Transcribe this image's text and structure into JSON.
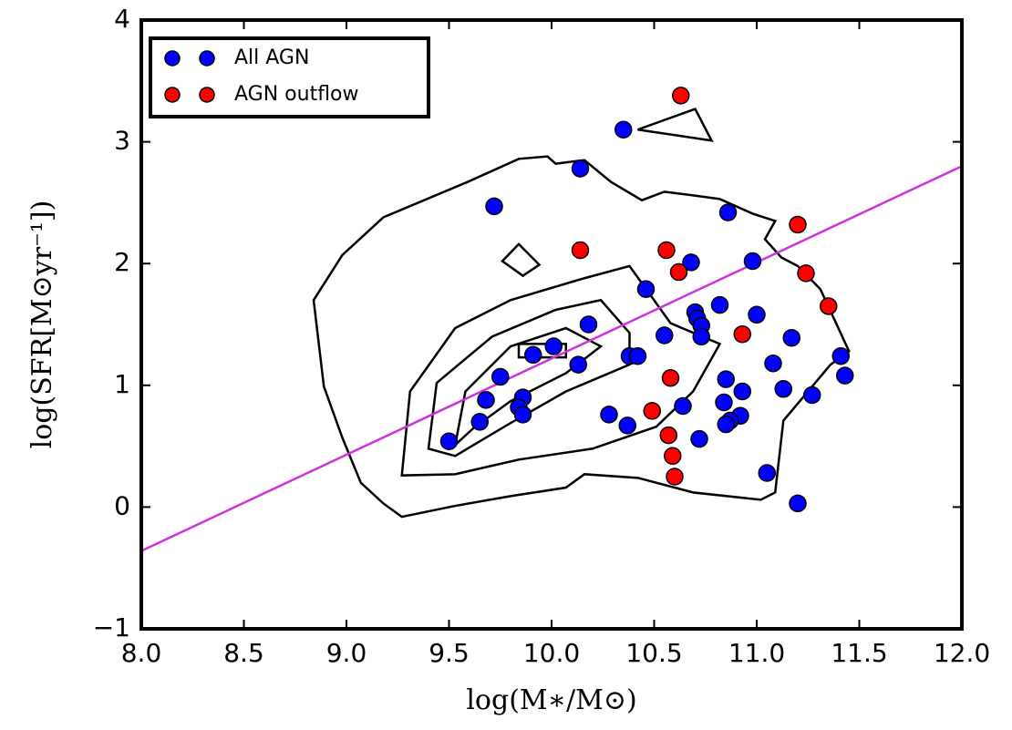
{
  "chart_data": {
    "type": "scatter",
    "xlabel": "log(M∗/M⊙)",
    "ylabel": "log(SFR[M⊙yr⁻¹])",
    "xlim": [
      8,
      12
    ],
    "ylim": [
      -1,
      4
    ],
    "xticks": [
      {
        "value": 8,
        "label": "8.0"
      },
      {
        "value": 8.5,
        "label": "8.5"
      },
      {
        "value": 9,
        "label": "9.0"
      },
      {
        "value": 9.5,
        "label": "9.5"
      },
      {
        "value": 10,
        "label": "10.0"
      },
      {
        "value": 10.5,
        "label": "10.5"
      },
      {
        "value": 11,
        "label": "11.0"
      },
      {
        "value": 11.5,
        "label": "11.5"
      },
      {
        "value": 12,
        "label": "12.0"
      }
    ],
    "yticks": [
      {
        "value": -1,
        "label": "−1"
      },
      0,
      1,
      2,
      3,
      4
    ],
    "legend": "upper left",
    "series": [
      {
        "name": "All AGN",
        "color": "#0000ff",
        "x": [
          10.35,
          10.14,
          9.72,
          10.86,
          10.68,
          10.98,
          10.46,
          10.82,
          10.7,
          11.0,
          10.18,
          10.71,
          10.73,
          10.73,
          10.55,
          11.17,
          9.91,
          10.01,
          10.13,
          10.38,
          10.42,
          11.41,
          11.08,
          9.75,
          9.68,
          9.86,
          9.84,
          9.86,
          10.85,
          11.43,
          10.93,
          11.13,
          10.84,
          10.64,
          11.27,
          10.28,
          10.37,
          10.92,
          10.87,
          10.85,
          10.72,
          9.65,
          9.5,
          11.05,
          11.2
        ],
        "values": [
          3.1,
          2.78,
          2.47,
          2.42,
          2.01,
          2.02,
          1.79,
          1.66,
          1.6,
          1.58,
          1.5,
          1.55,
          1.49,
          1.4,
          1.41,
          1.39,
          1.25,
          1.32,
          1.17,
          1.24,
          1.24,
          1.24,
          1.18,
          1.07,
          0.88,
          0.9,
          0.82,
          0.76,
          1.05,
          1.08,
          0.95,
          0.97,
          0.86,
          0.83,
          0.92,
          0.76,
          0.67,
          0.75,
          0.71,
          0.68,
          0.56,
          0.7,
          0.54,
          0.28,
          0.03
        ]
      },
      {
        "name": "AGN outflow",
        "color": "#ff0000",
        "x": [
          10.63,
          10.14,
          10.56,
          10.62,
          11.2,
          11.24,
          11.35,
          10.93,
          10.58,
          10.49,
          10.57,
          10.59,
          10.6
        ],
        "values": [
          3.38,
          2.11,
          2.11,
          1.93,
          2.32,
          1.92,
          1.65,
          1.42,
          1.06,
          0.79,
          0.59,
          0.42,
          0.25
        ]
      }
    ],
    "fit_line": {
      "color": "#cc33dd",
      "x": [
        8,
        12
      ],
      "values": [
        -0.36,
        2.8
      ]
    },
    "contour_color": "#000000",
    "contours": [
      {
        "x": [
          8.84,
          8.98,
          9.18,
          9.59,
          9.84,
          9.98,
          10.02,
          10.16,
          10.29,
          10.44,
          10.55,
          10.69,
          10.82,
          10.98,
          11.09,
          11.04,
          11.12,
          11.2,
          11.31,
          11.45,
          11.36,
          11.13,
          11.09,
          11.02,
          10.69,
          10.42,
          10.16,
          10.07,
          9.8,
          9.53,
          9.27,
          9.18,
          9.07,
          8.98,
          8.89
        ],
        "values": [
          1.7,
          2.07,
          2.38,
          2.67,
          2.86,
          2.88,
          2.82,
          2.85,
          2.67,
          2.52,
          2.59,
          2.56,
          2.53,
          2.41,
          2.35,
          2.2,
          2.05,
          1.98,
          1.79,
          1.28,
          1.17,
          0.71,
          0.12,
          0.06,
          0.12,
          0.24,
          0.27,
          0.16,
          0.09,
          0.01,
          -0.08,
          0.03,
          0.2,
          0.57,
          0.99
        ]
      },
      {
        "x": [
          9.27,
          9.31,
          9.53,
          9.8,
          10.16,
          10.38,
          10.58,
          10.82,
          10.69,
          10.51,
          10.2,
          9.84,
          9.53
        ],
        "values": [
          0.26,
          0.95,
          1.47,
          1.7,
          1.88,
          1.98,
          1.51,
          1.34,
          0.95,
          0.66,
          0.48,
          0.39,
          0.27
        ]
      },
      {
        "x": [
          9.4,
          9.44,
          9.71,
          10.02,
          10.24,
          10.38,
          10.38,
          10.07,
          9.8,
          9.53
        ],
        "values": [
          0.48,
          1.02,
          1.4,
          1.62,
          1.7,
          1.43,
          1.17,
          0.95,
          0.69,
          0.42
        ]
      },
      {
        "x": [
          9.53,
          9.58,
          9.8,
          10.07,
          10.24,
          10.07,
          9.8,
          9.62
        ],
        "values": [
          0.51,
          0.95,
          1.32,
          1.47,
          1.32,
          1.1,
          0.87,
          0.65
        ]
      },
      {
        "x": [
          9.84,
          10.07,
          10.07,
          9.84
        ],
        "values": [
          1.34,
          1.34,
          1.23,
          1.23
        ]
      },
      {
        "x": [
          9.76,
          9.84,
          9.94,
          9.86
        ],
        "values": [
          2.02,
          2.16,
          1.99,
          1.9
        ]
      },
      {
        "x": [
          10.42,
          10.7,
          10.78
        ],
        "values": [
          3.1,
          3.27,
          3.01
        ]
      }
    ]
  }
}
